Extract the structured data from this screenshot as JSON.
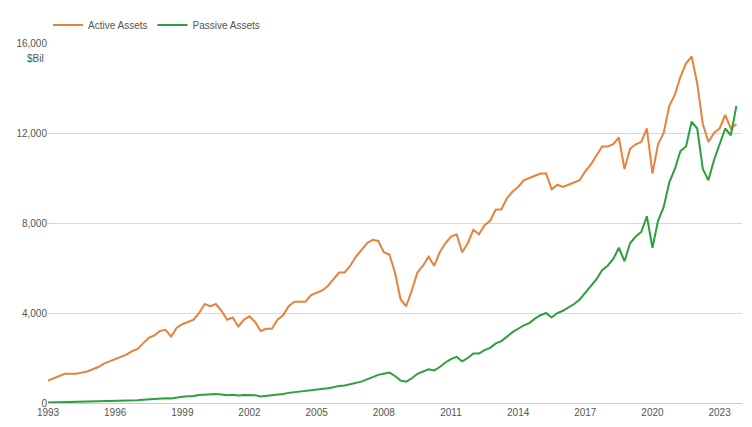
{
  "chart_data": {
    "type": "line",
    "ylabel": "$Bil",
    "x": [
      1993,
      1993.25,
      1993.5,
      1993.75,
      1994,
      1994.25,
      1994.5,
      1994.75,
      1995,
      1995.25,
      1995.5,
      1995.75,
      1996,
      1996.25,
      1996.5,
      1996.75,
      1997,
      1997.25,
      1997.5,
      1997.75,
      1998,
      1998.25,
      1998.5,
      1998.75,
      1999,
      1999.25,
      1999.5,
      1999.75,
      2000,
      2000.25,
      2000.5,
      2000.75,
      2001,
      2001.25,
      2001.5,
      2001.75,
      2002,
      2002.25,
      2002.5,
      2002.75,
      2003,
      2003.25,
      2003.5,
      2003.75,
      2004,
      2004.25,
      2004.5,
      2004.75,
      2005,
      2005.25,
      2005.5,
      2005.75,
      2006,
      2006.25,
      2006.5,
      2006.75,
      2007,
      2007.25,
      2007.5,
      2007.75,
      2008,
      2008.25,
      2008.5,
      2008.75,
      2009,
      2009.25,
      2009.5,
      2009.75,
      2010,
      2010.25,
      2010.5,
      2010.75,
      2011,
      2011.25,
      2011.5,
      2011.75,
      2012,
      2012.25,
      2012.5,
      2012.75,
      2013,
      2013.25,
      2013.5,
      2013.75,
      2014,
      2014.25,
      2014.5,
      2014.75,
      2015,
      2015.25,
      2015.5,
      2015.75,
      2016,
      2016.25,
      2016.5,
      2016.75,
      2017,
      2017.25,
      2017.5,
      2017.75,
      2018,
      2018.25,
      2018.5,
      2018.75,
      2019,
      2019.25,
      2019.5,
      2019.75,
      2020,
      2020.25,
      2020.5,
      2020.75,
      2021,
      2021.25,
      2021.5,
      2021.75,
      2022,
      2022.25,
      2022.5,
      2022.75,
      2023,
      2023.25,
      2023.5,
      2023.75
    ],
    "series": [
      {
        "name": "Active Assets",
        "color": "#e8823a",
        "values": [
          1000,
          1100,
          1200,
          1300,
          1300,
          1300,
          1350,
          1400,
          1500,
          1600,
          1750,
          1850,
          1950,
          2050,
          2150,
          2300,
          2400,
          2650,
          2900,
          3000,
          3200,
          3250,
          2950,
          3350,
          3500,
          3600,
          3700,
          4000,
          4400,
          4300,
          4400,
          4100,
          3700,
          3800,
          3400,
          3700,
          3850,
          3600,
          3200,
          3300,
          3300,
          3700,
          3900,
          4300,
          4500,
          4500,
          4500,
          4800,
          4900,
          5000,
          5200,
          5500,
          5800,
          5800,
          6100,
          6500,
          6800,
          7100,
          7250,
          7200,
          6700,
          6600,
          5800,
          4600,
          4300,
          5000,
          5800,
          6100,
          6500,
          6100,
          6700,
          7100,
          7400,
          7500,
          6700,
          7100,
          7700,
          7500,
          7900,
          8100,
          8600,
          8600,
          9100,
          9400,
          9600,
          9900,
          10000,
          10100,
          10200,
          10200,
          9500,
          9700,
          9600,
          9700,
          9800,
          9900,
          10300,
          10600,
          11000,
          11400,
          11400,
          11500,
          11800,
          10400,
          11300,
          11500,
          11600,
          12200,
          10200,
          11500,
          12000,
          13200,
          13700,
          14500,
          15100,
          15400,
          14200,
          12400,
          11600,
          12000,
          12200,
          12800,
          12200,
          12400
        ]
      },
      {
        "name": "Passive Assets",
        "color": "#2ca03c",
        "values": [
          20,
          25,
          30,
          35,
          35,
          40,
          40,
          45,
          50,
          55,
          60,
          70,
          80,
          90,
          100,
          110,
          120,
          140,
          160,
          170,
          200,
          210,
          200,
          250,
          280,
          300,
          310,
          360,
          380,
          390,
          400,
          380,
          340,
          370,
          330,
          360,
          370,
          350,
          290,
          320,
          320,
          370,
          400,
          450,
          480,
          500,
          510,
          560,
          580,
          610,
          660,
          700,
          760,
          780,
          830,
          890,
          950,
          1050,
          1150,
          1250,
          1300,
          1350,
          1200,
          1000,
          950,
          1100,
          1300,
          1400,
          1500,
          1450,
          1600,
          1800,
          1950,
          2050,
          1850,
          2000,
          2200,
          2200,
          2350,
          2450,
          2650,
          2750,
          2950,
          3150,
          3300,
          3450,
          3550,
          3750,
          3900,
          4000,
          3800,
          4000,
          4100,
          4250,
          4400,
          4600,
          4900,
          5200,
          5500,
          5900,
          6100,
          6400,
          6900,
          6300,
          7100,
          7400,
          7600,
          8300,
          6900,
          8100,
          8700,
          9800,
          10400,
          11200,
          11400,
          12500,
          12200,
          10400,
          9900,
          10800,
          11500,
          12200,
          11900,
          13200
        ]
      }
    ],
    "xlim": [
      1993,
      2024
    ],
    "xticks": [
      1993,
      1996,
      1999,
      2002,
      2005,
      2008,
      2011,
      2014,
      2017,
      2020,
      2023
    ],
    "ylim": [
      0,
      16000
    ],
    "yticks": [
      0,
      {
        "value": 4000,
        "label": "4,000"
      },
      {
        "value": 8000,
        "label": "8,000"
      },
      {
        "value": 12000,
        "label": "12,000"
      },
      {
        "value": 16000,
        "label": "16,000"
      }
    ],
    "grid": true,
    "legend": "top left"
  }
}
